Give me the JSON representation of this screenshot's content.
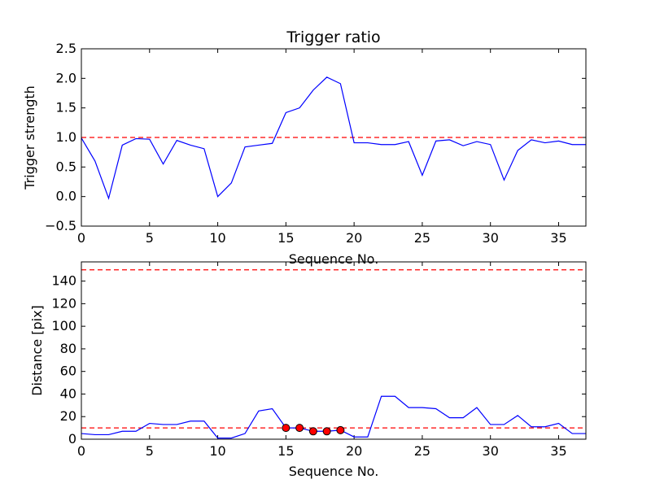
{
  "chart_data": [
    {
      "type": "line",
      "title": "Trigger ratio",
      "xlabel": "Sequence No.",
      "ylabel": "Trigger strength",
      "xlim": [
        0,
        37
      ],
      "ylim": [
        -0.5,
        2.5
      ],
      "xticks": [
        0,
        5,
        10,
        15,
        20,
        25,
        30,
        35
      ],
      "yticks": [
        -0.5,
        0.0,
        0.5,
        1.0,
        1.5,
        2.0,
        2.5
      ],
      "ytick_labels": [
        "−0.5",
        "0.0",
        "0.5",
        "1.0",
        "1.5",
        "2.0",
        "2.5"
      ],
      "series": [
        {
          "name": "trigger strength",
          "color": "#0000ff",
          "x": [
            0,
            1,
            2,
            3,
            4,
            5,
            6,
            7,
            8,
            9,
            10,
            11,
            12,
            13,
            14,
            15,
            16,
            17,
            18,
            19,
            20,
            21,
            22,
            23,
            24,
            25,
            26,
            27,
            28,
            29,
            30,
            31,
            32,
            33,
            34,
            35,
            36,
            37
          ],
          "y": [
            0.99,
            0.6,
            -0.03,
            0.87,
            0.98,
            0.97,
            0.55,
            0.95,
            0.87,
            0.81,
            0.0,
            0.23,
            0.84,
            0.87,
            0.9,
            1.42,
            1.5,
            1.8,
            2.02,
            1.91,
            0.91,
            0.91,
            0.88,
            0.88,
            0.93,
            0.36,
            0.94,
            0.96,
            0.86,
            0.93,
            0.88,
            0.28,
            0.78,
            0.96,
            0.91,
            0.94,
            0.88,
            0.88
          ]
        }
      ],
      "thresholds": [
        {
          "y": 1.0,
          "color": "#ff0000"
        }
      ]
    },
    {
      "type": "line",
      "title": "",
      "xlabel": "Sequence No.",
      "ylabel": "Distance [pix]",
      "xlim": [
        0,
        37
      ],
      "ylim": [
        0,
        157
      ],
      "xticks": [
        0,
        5,
        10,
        15,
        20,
        25,
        30,
        35
      ],
      "yticks": [
        0,
        20,
        40,
        60,
        80,
        100,
        120,
        140
      ],
      "ytick_labels": [
        "0",
        "20",
        "40",
        "60",
        "80",
        "100",
        "120",
        "140"
      ],
      "series": [
        {
          "name": "distance",
          "color": "#0000ff",
          "x": [
            0,
            1,
            2,
            3,
            4,
            5,
            6,
            7,
            8,
            9,
            10,
            11,
            12,
            13,
            14,
            15,
            16,
            17,
            18,
            19,
            20,
            21,
            22,
            23,
            24,
            25,
            26,
            27,
            28,
            29,
            30,
            31,
            32,
            33,
            34,
            35,
            36,
            37
          ],
          "y": [
            5,
            4,
            4,
            7,
            7,
            14,
            13,
            13,
            16,
            16,
            1,
            1,
            5,
            25,
            27,
            10,
            10,
            7,
            7,
            8,
            2,
            2,
            38,
            38,
            28,
            28,
            27,
            19,
            19,
            28,
            13,
            13,
            21,
            11,
            11,
            14,
            5,
            5
          ]
        }
      ],
      "markers": {
        "color": "#ff0000",
        "x": [
          15,
          16,
          17,
          18,
          19
        ],
        "y": [
          10,
          10,
          7,
          7,
          8
        ]
      },
      "thresholds": [
        {
          "y": 150,
          "color": "#ff0000"
        },
        {
          "y": 10,
          "color": "#ff0000"
        }
      ]
    }
  ]
}
